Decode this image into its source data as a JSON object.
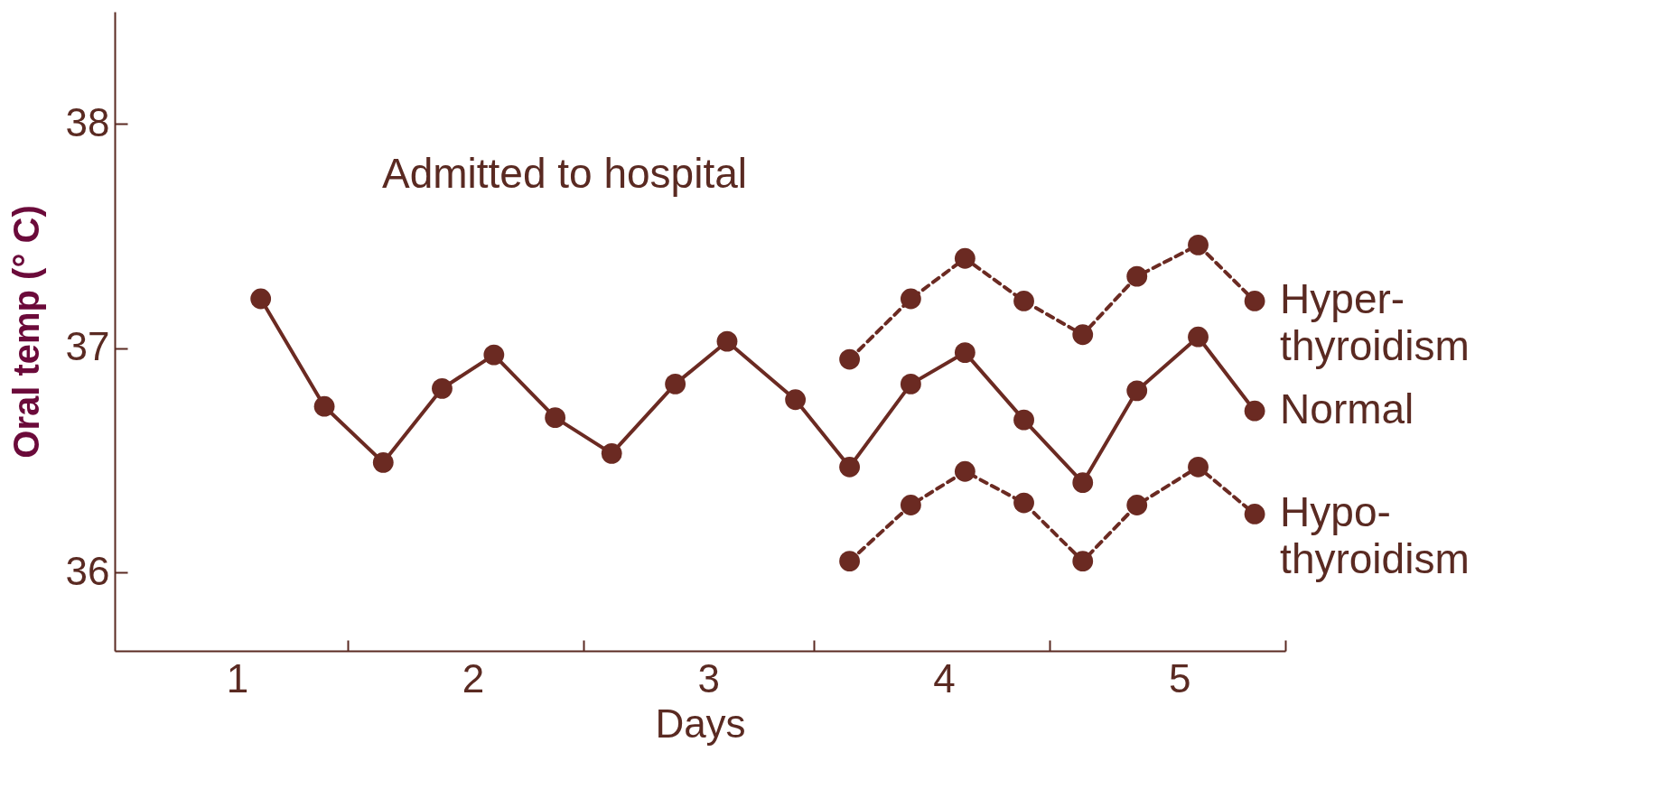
{
  "chart_data": {
    "type": "line",
    "xlabel": "Days",
    "ylabel": "Oral temp (° C)",
    "xlim": [
      0.48,
      5.45
    ],
    "ylim": [
      35.65,
      38.5
    ],
    "xticks": [
      {
        "value": 1,
        "label": "1"
      },
      {
        "value": 1.47,
        "label": null
      },
      {
        "value": 2,
        "label": "2"
      },
      {
        "value": 2.47,
        "label": null
      },
      {
        "value": 3,
        "label": "3"
      },
      {
        "value": 3.45,
        "label": null
      },
      {
        "value": 4,
        "label": "4"
      },
      {
        "value": 4.45,
        "label": null
      },
      {
        "value": 5,
        "label": "5"
      },
      {
        "value": 5.45,
        "label": null
      }
    ],
    "yticks": [
      36,
      37,
      38
    ],
    "grid": false,
    "marker": "circle",
    "annotations": [
      "Admitted to hospital"
    ],
    "series": [
      {
        "name": "Hyper-\nthyroidism",
        "color": "#6b2a22",
        "line_style": "dashed",
        "x": [
          3.6,
          3.86,
          4.09,
          4.34,
          4.59,
          4.82,
          5.08,
          5.32
        ],
        "values": [
          36.95,
          37.22,
          37.4,
          37.21,
          37.06,
          37.32,
          37.46,
          37.21
        ]
      },
      {
        "name": "Normal",
        "color": "#6b2a22",
        "line_style": "solid",
        "x": [
          1.1,
          1.37,
          1.62,
          1.87,
          2.09,
          2.35,
          2.59,
          2.86,
          3.08,
          3.37,
          3.6,
          3.86,
          4.09,
          4.34,
          4.59,
          4.82,
          5.08,
          5.32
        ],
        "values": [
          37.22,
          36.74,
          36.49,
          36.82,
          36.97,
          36.69,
          36.53,
          36.84,
          37.03,
          36.77,
          36.47,
          36.84,
          36.98,
          36.68,
          36.4,
          36.81,
          37.05,
          36.72
        ]
      },
      {
        "name": "Hypo-\nthyroidism",
        "color": "#6b2a22",
        "line_style": "dashed",
        "x": [
          3.6,
          3.86,
          4.09,
          4.34,
          4.59,
          4.82,
          5.08,
          5.32
        ],
        "values": [
          36.05,
          36.3,
          36.45,
          36.31,
          36.05,
          36.3,
          36.47,
          36.26
        ]
      }
    ]
  }
}
